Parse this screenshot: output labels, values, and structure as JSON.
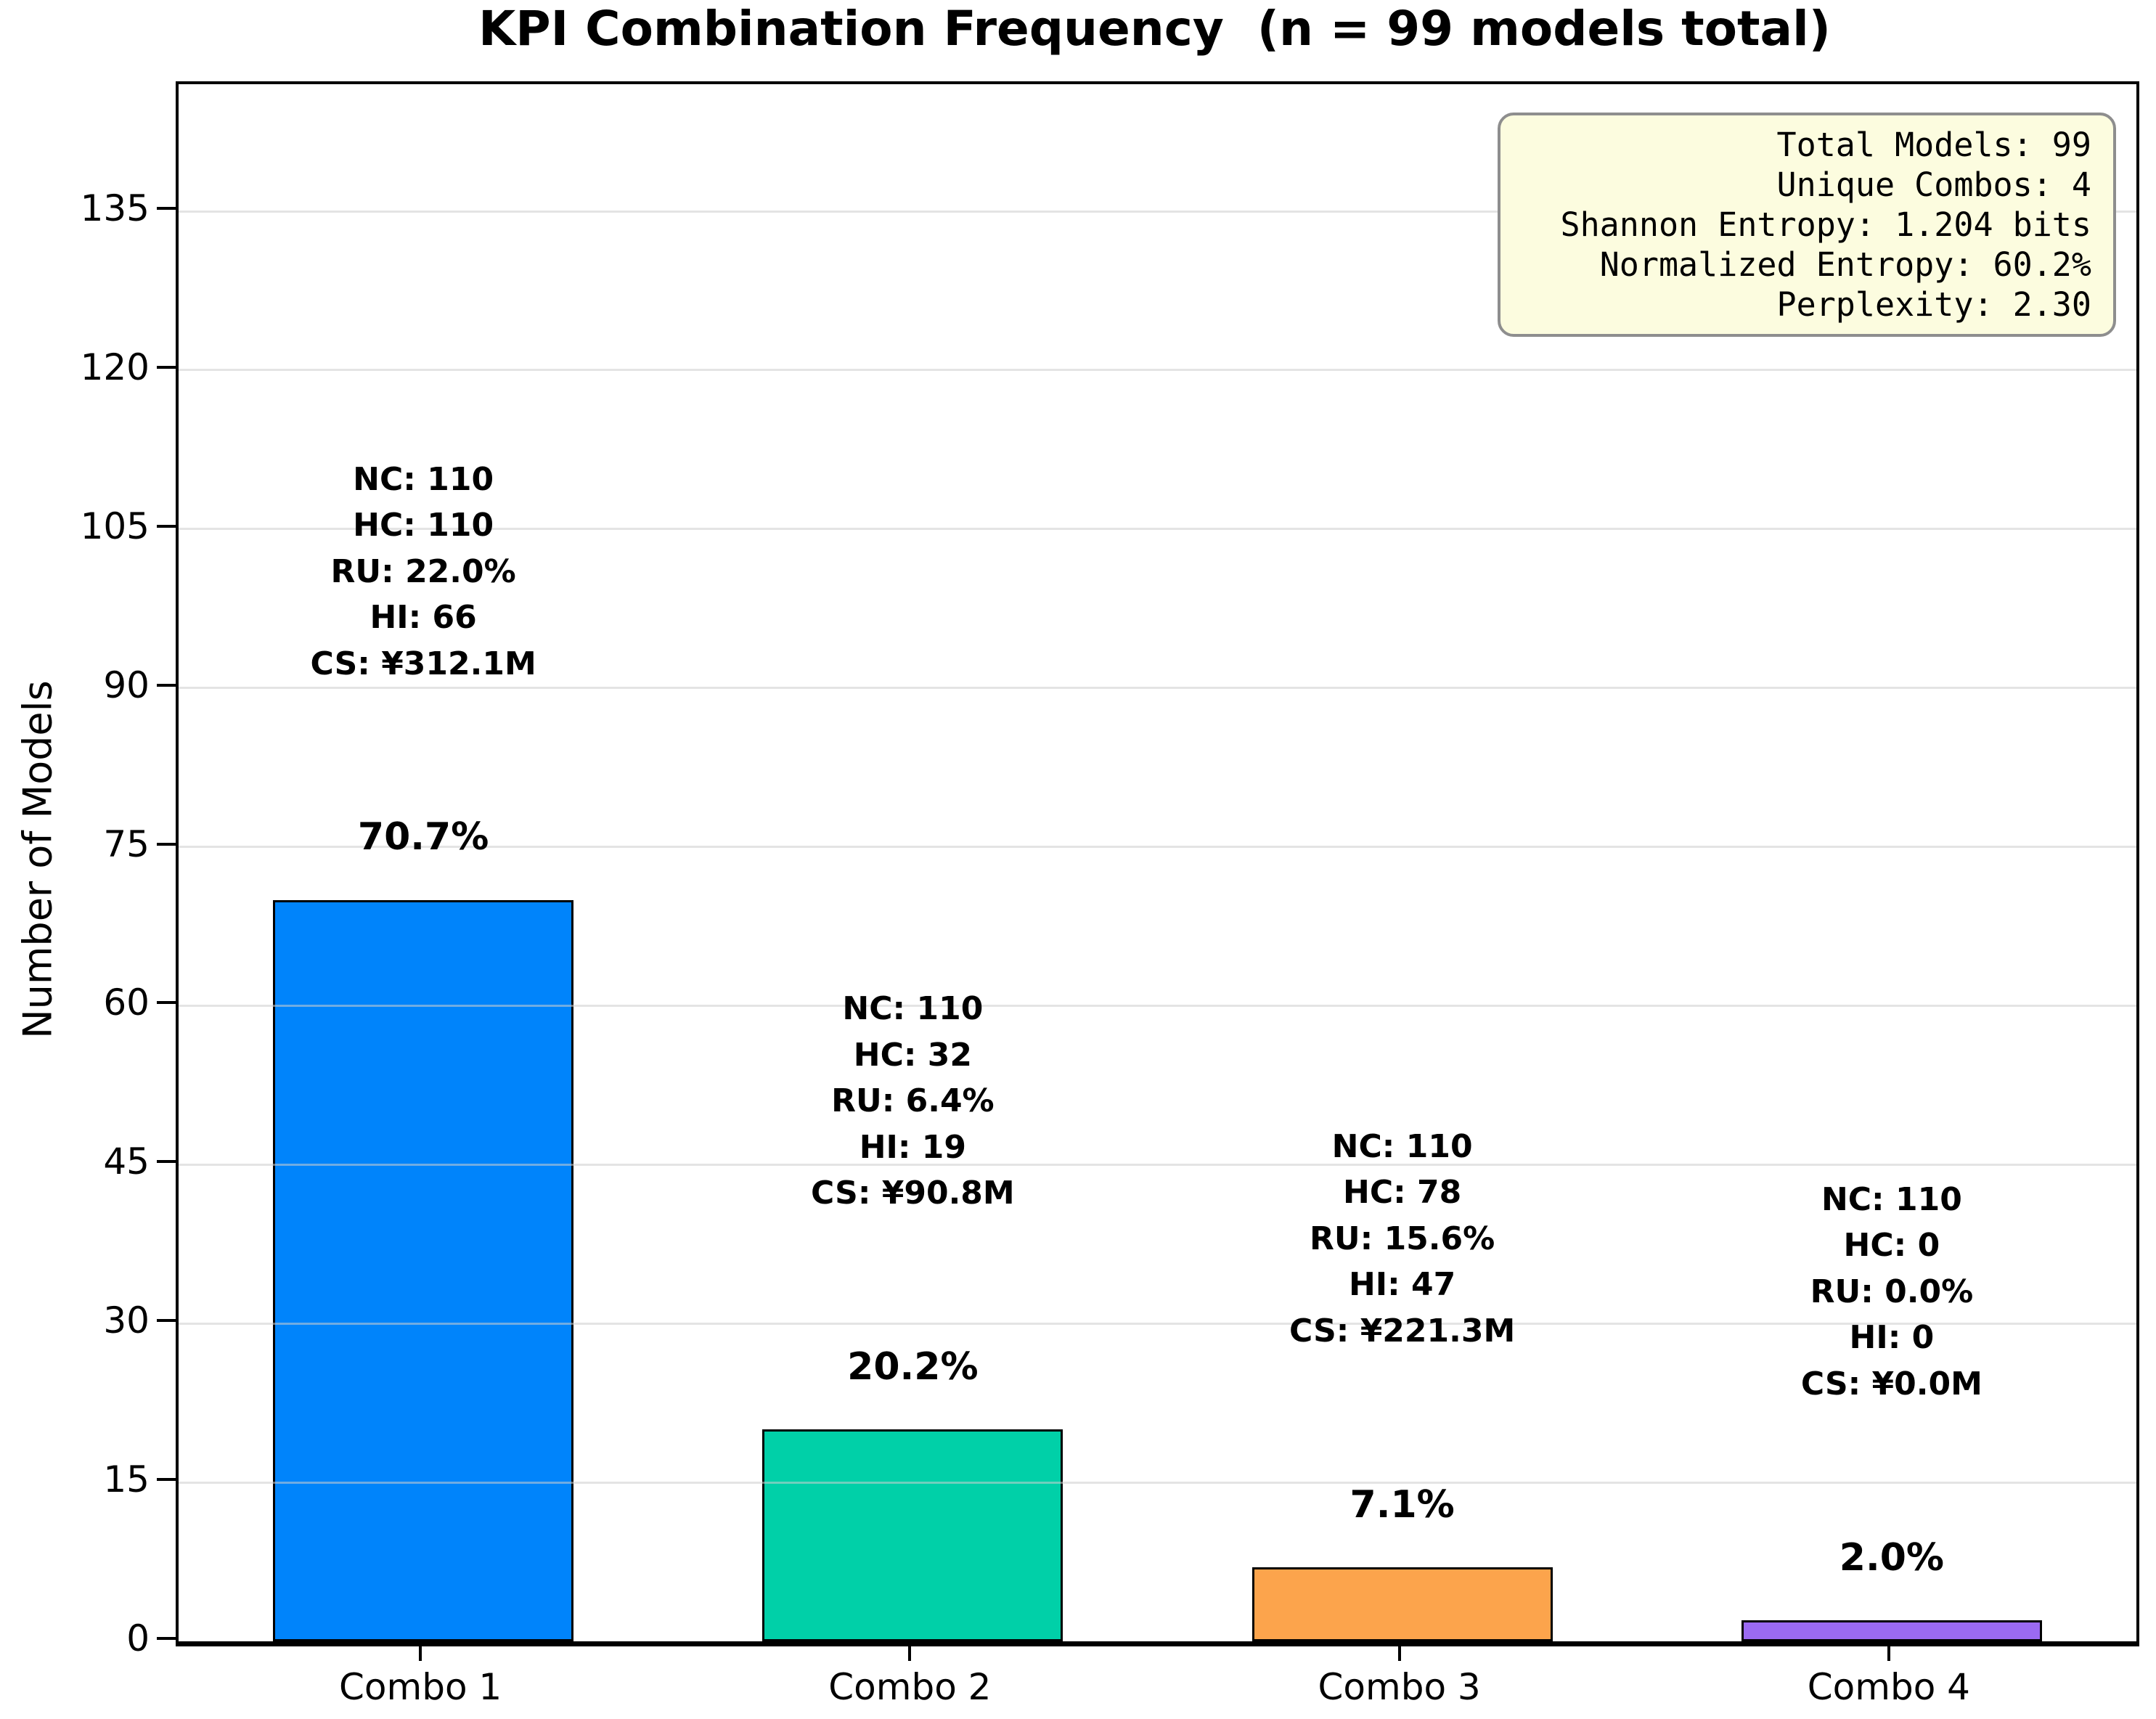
{
  "title": "KPI Combination Frequency  (n = 99 models total)",
  "stats_box": {
    "lines": [
      "Total Models: 99",
      "Unique Combos: 4",
      "Shannon Entropy: 1.204 bits",
      "Normalized Entropy: 60.2%",
      "Perplexity: 2.30"
    ],
    "background": "#FCFCDF",
    "border_color": "#8E8E8E"
  },
  "chart_data": {
    "type": "bar",
    "title": "KPI Combination Frequency  (n = 99 models total)",
    "categories": [
      "Combo 1",
      "Combo 2",
      "Combo 3",
      "Combo 4"
    ],
    "values": [
      70,
      20,
      7,
      2
    ],
    "percent_labels": [
      "70.7%",
      "20.2%",
      "7.1%",
      "2.0%"
    ],
    "bar_colors": [
      "#0084FB",
      "#00D0A8",
      "#FCA44C",
      "#9B6AF2"
    ],
    "bar_edge_color": "#000000",
    "bar_annotations": [
      [
        "NC: 110",
        "HC: 110",
        "RU: 22.0%",
        "HI: 66",
        "CS: ¥312.1M"
      ],
      [
        "NC: 110",
        "HC: 32",
        "RU: 6.4%",
        "HI: 19",
        "CS: ¥90.8M"
      ],
      [
        "NC: 110",
        "HC: 78",
        "RU: 15.6%",
        "HI: 47",
        "CS: ¥221.3M"
      ],
      [
        "NC: 110",
        "HC: 0",
        "RU: 0.0%",
        "HI: 0",
        "CS: ¥0.0M"
      ]
    ],
    "xlabel": "",
    "ylabel": "Number of Models",
    "ylim": [
      0,
      147
    ],
    "yticks": [
      0,
      15,
      30,
      45,
      60,
      75,
      90,
      105,
      120,
      135
    ],
    "grid": "horizontal",
    "legend": "none"
  }
}
